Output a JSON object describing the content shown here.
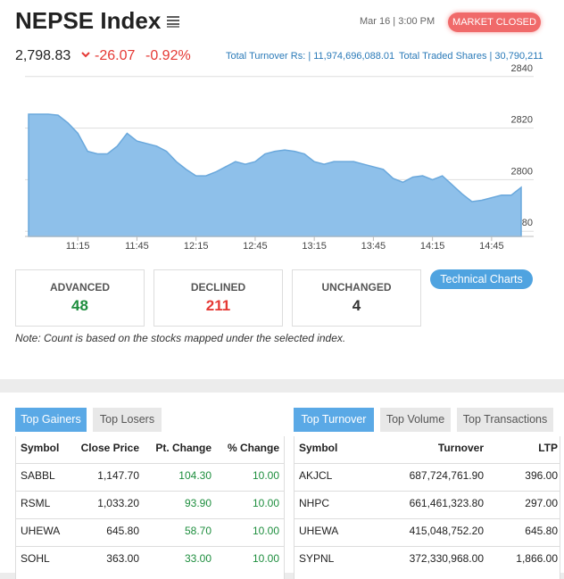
{
  "header": {
    "title": "NEPSE Index",
    "date": "Mar 16 | 3:00 PM",
    "status": "MARKET CLOSED",
    "index_value": "2,798.83",
    "change": "-26.07",
    "change_pct": "-0.92%",
    "turnover": "Total Turnover Rs: | 11,974,696,088.01",
    "traded_shares": "Total Traded Shares | 30,790,211"
  },
  "chart_data": {
    "type": "area",
    "color": "#8ec0ea",
    "categories": [
      null,
      null,
      null,
      null,
      null,
      "11:15",
      null,
      null,
      null,
      null,
      null,
      "11:45",
      null,
      null,
      null,
      null,
      null,
      "12:15",
      null,
      null,
      null,
      null,
      null,
      "12:45",
      null,
      null,
      null,
      null,
      null,
      "13:15",
      null,
      null,
      null,
      null,
      null,
      "13:45",
      null,
      null,
      null,
      null,
      null,
      "14:15",
      null,
      null,
      null,
      null,
      null,
      "14:45",
      null,
      null,
      null
    ],
    "values": [
      2825.4,
      2825.4,
      2825.4,
      2825,
      2822,
      2818,
      2811,
      2810,
      2810,
      2813,
      2818,
      2815,
      2814,
      2813,
      2811,
      2807,
      2804,
      2801.5,
      2801.5,
      2803,
      2805,
      2807,
      2806,
      2807,
      2810,
      2811,
      2811.5,
      2811,
      2810,
      2807,
      2806,
      2807,
      2807,
      2807,
      2806,
      2805,
      2804,
      2800.5,
      2799,
      2801,
      2801.5,
      2800,
      2801.5,
      2798,
      2794.5,
      2791.5,
      2792,
      2793,
      2794,
      2794,
      2797
    ],
    "ylim": [
      2778,
      2842
    ],
    "yticks": [
      2840,
      2820,
      2800,
      2780
    ],
    "grid": true
  },
  "stats": {
    "advanced": {
      "label": "ADVANCED",
      "value": "48"
    },
    "declined": {
      "label": "DECLINED",
      "value": "211"
    },
    "unchanged": {
      "label": "UNCHANGED",
      "value": "4"
    }
  },
  "button": "Technical Charts",
  "note": "Note: Count is based on the stocks mapped under the selected index.",
  "left": {
    "tabs": [
      "Top Gainers",
      "Top Losers"
    ],
    "columns": [
      "Symbol",
      "Close Price",
      "Pt. Change",
      "% Change"
    ],
    "rows": [
      [
        "SABBL",
        "1,147.70",
        "104.30",
        "10.00"
      ],
      [
        "RSML",
        "1,033.20",
        "93.90",
        "10.00"
      ],
      [
        "UHEWA",
        "645.80",
        "58.70",
        "10.00"
      ],
      [
        "SOHL",
        "363.00",
        "33.00",
        "10.00"
      ]
    ]
  },
  "right": {
    "tabs": [
      "Top Turnover",
      "Top Volume",
      "Top Transactions"
    ],
    "columns": [
      "Symbol",
      "Turnover",
      "LTP"
    ],
    "rows": [
      [
        "AKJCL",
        "687,724,761.90",
        "396.00"
      ],
      [
        "NHPC",
        "661,461,323.80",
        "297.00"
      ],
      [
        "UHEWA",
        "415,048,752.20",
        "645.80"
      ],
      [
        "SYPNL",
        "372,330,968.00",
        "1,866.00"
      ]
    ]
  }
}
